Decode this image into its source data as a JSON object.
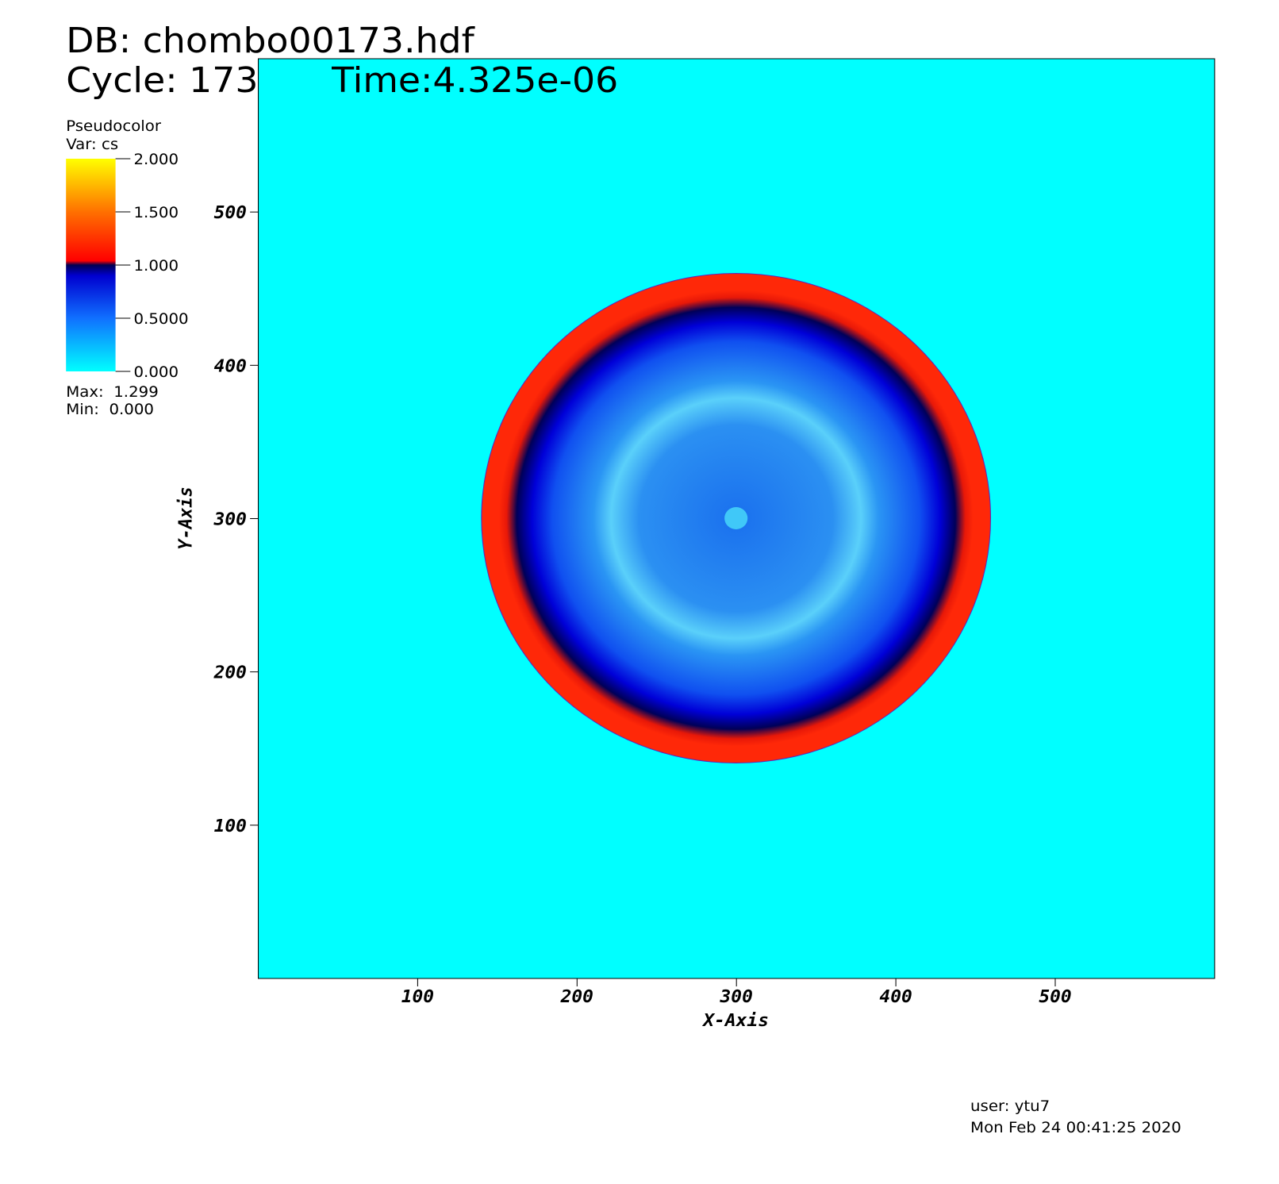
{
  "chart_data": {
    "type": "pseudocolor",
    "title": "DB: chombo00173.hdf",
    "cycle": "Cycle: 173",
    "time": "Time:4.325e-06",
    "legend_title": "Pseudocolor",
    "legend_var": "Var: cs",
    "legend_max": "Max:  1.299",
    "legend_min": "Min:  0.000",
    "colorbar_lim": [
      0,
      2
    ],
    "colorbar_ticks": [
      {
        "value": 0,
        "label": "0.000"
      },
      {
        "value": 0.5,
        "label": "0.5000"
      },
      {
        "value": 1,
        "label": "1.000"
      },
      {
        "value": 1.5,
        "label": "1.500"
      },
      {
        "value": 2,
        "label": "2.000"
      }
    ],
    "xlabel": "X-Axis",
    "ylabel": "Y-Axis",
    "xlim": [
      0,
      600
    ],
    "ylim": [
      0,
      600
    ],
    "xticks": [
      100,
      200,
      300,
      400,
      500
    ],
    "yticks": [
      100,
      200,
      300,
      400,
      500
    ],
    "user": "user: ytu7",
    "date": "Mon Feb 24 00:41:25 2020"
  }
}
